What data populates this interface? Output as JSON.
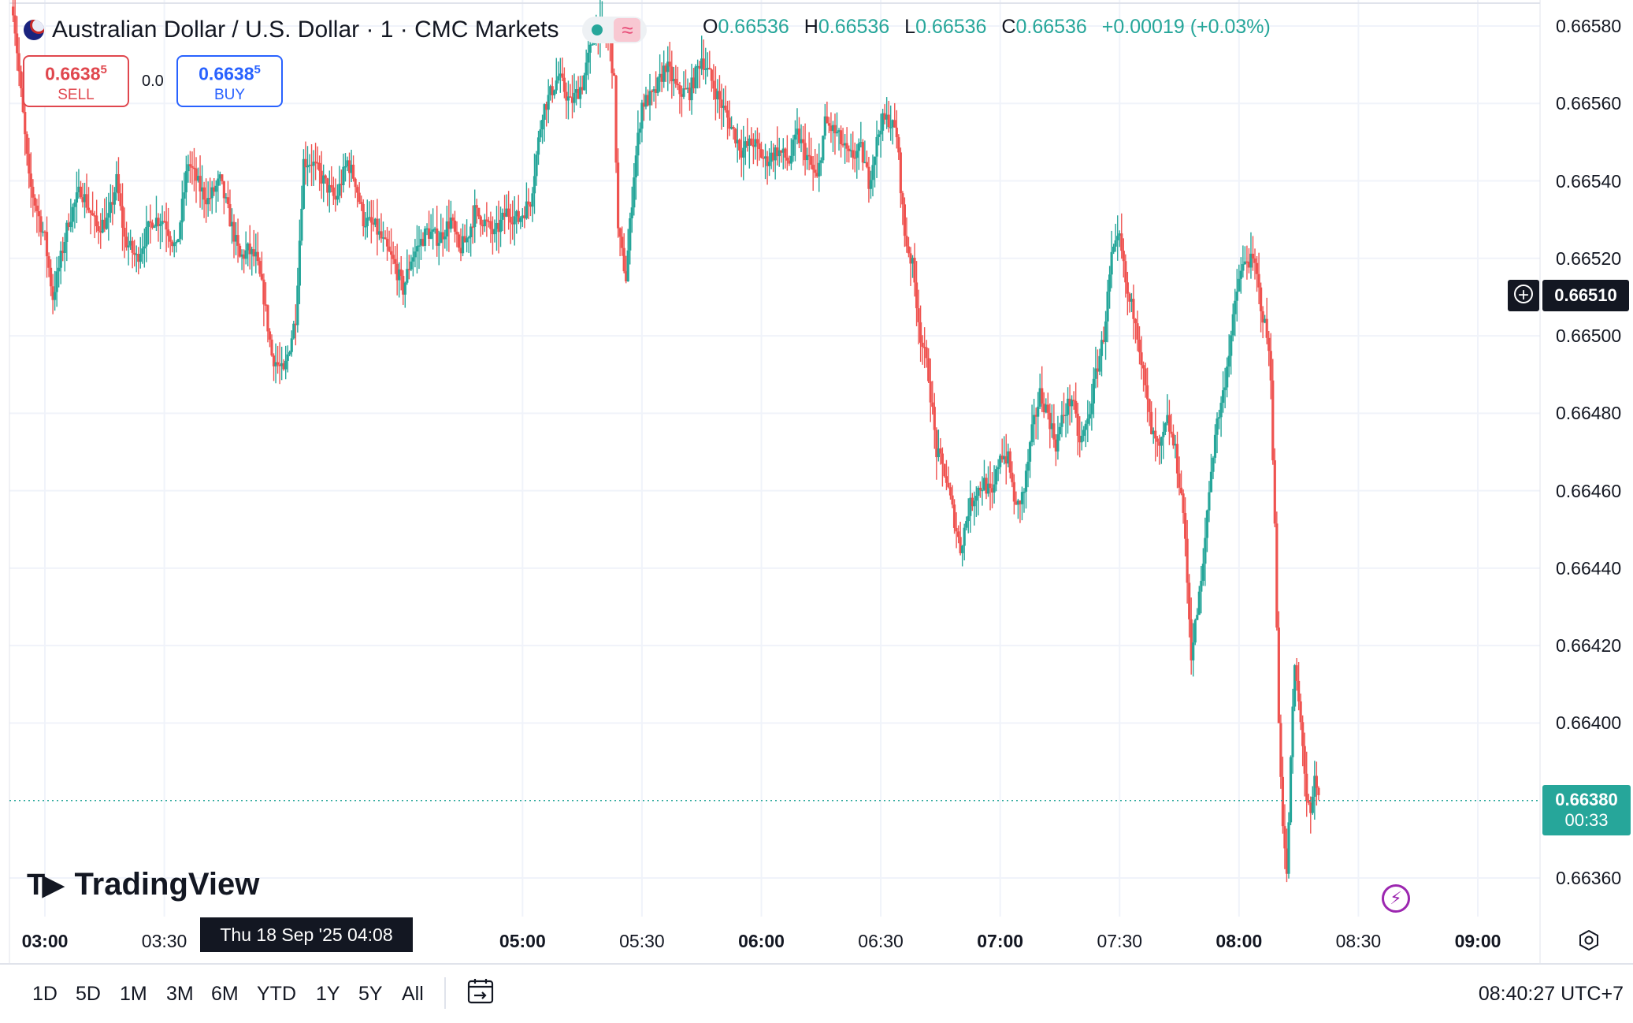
{
  "header": {
    "title": "Australian Dollar / U.S. Dollar · 1 · CMC Markets",
    "open_label": "O",
    "open": "0.66536",
    "high_label": "H",
    "high": "0.66536",
    "low_label": "L",
    "low": "0.66536",
    "close_label": "C",
    "close": "0.66536",
    "change": "+0.00019 (+0.03%)"
  },
  "trade": {
    "sell_price": "0.6638",
    "sell_sup": "5",
    "sell_label": "SELL",
    "spread": "0.0",
    "buy_price": "0.6638",
    "buy_sup": "5",
    "buy_label": "BUY"
  },
  "price_scale": {
    "crosshair_price": "0.66510",
    "last_price": "0.66380",
    "countdown": "00:33"
  },
  "crosshair_date": "Thu 18 Sep '25   04:08",
  "logo_text": "TradingView",
  "range_buttons": [
    "1D",
    "5D",
    "1M",
    "3M",
    "6M",
    "YTD",
    "1Y",
    "5Y",
    "All"
  ],
  "clock": "08:40:27 UTC+7",
  "colors": {
    "up": "#26a69a",
    "down": "#ef5350",
    "grid": "#f0f3fa"
  },
  "chart_data": {
    "type": "candlestick",
    "title": "Australian Dollar / U.S. Dollar · 1 · CMC Markets",
    "y_ticks": [
      "0.66580",
      "0.66560",
      "0.66540",
      "0.66520",
      "0.66500",
      "0.66480",
      "0.66460",
      "0.66440",
      "0.66420",
      "0.66400",
      "0.66360"
    ],
    "ylim": [
      0.6635,
      0.66585
    ],
    "x_ticks": [
      {
        "label": "03:00",
        "bold": true,
        "t": 180
      },
      {
        "label": "03:30",
        "bold": false,
        "t": 210
      },
      {
        "label": "05:00",
        "bold": true,
        "t": 300
      },
      {
        "label": "05:30",
        "bold": false,
        "t": 330
      },
      {
        "label": "06:00",
        "bold": true,
        "t": 360
      },
      {
        "label": "06:30",
        "bold": false,
        "t": 390
      },
      {
        "label": "07:00",
        "bold": true,
        "t": 420
      },
      {
        "label": "07:30",
        "bold": false,
        "t": 450
      },
      {
        "label": "08:00",
        "bold": true,
        "t": 480
      },
      {
        "label": "08:30",
        "bold": false,
        "t": 510
      },
      {
        "label": "09:00",
        "bold": true,
        "t": 540
      }
    ],
    "path": [
      [
        172,
        0.66585
      ],
      [
        176,
        0.6654
      ],
      [
        180,
        0.66525
      ],
      [
        182,
        0.6651
      ],
      [
        186,
        0.6653
      ],
      [
        189,
        0.66538
      ],
      [
        193,
        0.66528
      ],
      [
        196,
        0.6653
      ],
      [
        198,
        0.6654
      ],
      [
        200,
        0.66525
      ],
      [
        203,
        0.6652
      ],
      [
        207,
        0.6653
      ],
      [
        210,
        0.6653
      ],
      [
        213,
        0.66522
      ],
      [
        216,
        0.66545
      ],
      [
        219,
        0.66538
      ],
      [
        221,
        0.66535
      ],
      [
        224,
        0.6654
      ],
      [
        227,
        0.66528
      ],
      [
        229,
        0.6652
      ],
      [
        231,
        0.66522
      ],
      [
        233,
        0.6652
      ],
      [
        235,
        0.6651
      ],
      [
        237,
        0.66495
      ],
      [
        240,
        0.6649
      ],
      [
        243,
        0.66505
      ],
      [
        245,
        0.66545
      ],
      [
        247,
        0.66545
      ],
      [
        250,
        0.6654
      ],
      [
        253,
        0.66535
      ],
      [
        256,
        0.66545
      ],
      [
        258,
        0.6654
      ],
      [
        260,
        0.6653
      ],
      [
        263,
        0.66528
      ],
      [
        266,
        0.66522
      ],
      [
        268,
        0.66518
      ],
      [
        270,
        0.66512
      ],
      [
        272,
        0.6652
      ],
      [
        276,
        0.66527
      ],
      [
        279,
        0.66525
      ],
      [
        282,
        0.6653
      ],
      [
        284,
        0.66522
      ],
      [
        286,
        0.66525
      ],
      [
        288,
        0.66532
      ],
      [
        290,
        0.6653
      ],
      [
        293,
        0.66526
      ],
      [
        296,
        0.66532
      ],
      [
        299,
        0.6653
      ],
      [
        302,
        0.66535
      ],
      [
        305,
        0.66558
      ],
      [
        309,
        0.66567
      ],
      [
        312,
        0.6656
      ],
      [
        315,
        0.66565
      ],
      [
        318,
        0.66578
      ],
      [
        320,
        0.6658
      ],
      [
        322,
        0.66575
      ],
      [
        323,
        0.66565
      ],
      [
        324,
        0.66527
      ],
      [
        326,
        0.66515
      ],
      [
        328,
        0.66542
      ],
      [
        330,
        0.6656
      ],
      [
        333,
        0.66562
      ],
      [
        336,
        0.6657
      ],
      [
        339,
        0.66563
      ],
      [
        342,
        0.66563
      ],
      [
        345,
        0.66572
      ],
      [
        349,
        0.66562
      ],
      [
        352,
        0.66555
      ],
      [
        355,
        0.66548
      ],
      [
        358,
        0.6655
      ],
      [
        361,
        0.66545
      ],
      [
        364,
        0.66548
      ],
      [
        367,
        0.66545
      ],
      [
        369,
        0.66552
      ],
      [
        372,
        0.66545
      ],
      [
        374,
        0.6654
      ],
      [
        376,
        0.66555
      ],
      [
        379,
        0.66552
      ],
      [
        382,
        0.66546
      ],
      [
        385,
        0.66548
      ],
      [
        387,
        0.6654
      ],
      [
        390,
        0.66555
      ],
      [
        392,
        0.66556
      ],
      [
        394,
        0.66552
      ],
      [
        396,
        0.66526
      ],
      [
        398,
        0.66518
      ],
      [
        400,
        0.665
      ],
      [
        402,
        0.6649
      ],
      [
        404,
        0.6647
      ],
      [
        406,
        0.66465
      ],
      [
        408,
        0.66455
      ],
      [
        410,
        0.66445
      ],
      [
        412,
        0.66455
      ],
      [
        414,
        0.6646
      ],
      [
        416,
        0.66462
      ],
      [
        418,
        0.66458
      ],
      [
        420,
        0.6647
      ],
      [
        422,
        0.66468
      ],
      [
        424,
        0.66455
      ],
      [
        426,
        0.6646
      ],
      [
        428,
        0.66475
      ],
      [
        430,
        0.66485
      ],
      [
        432,
        0.6648
      ],
      [
        434,
        0.66472
      ],
      [
        436,
        0.6648
      ],
      [
        438,
        0.66484
      ],
      [
        440,
        0.66472
      ],
      [
        442,
        0.66478
      ],
      [
        444,
        0.6649
      ],
      [
        446,
        0.665
      ],
      [
        448,
        0.6652
      ],
      [
        450,
        0.66525
      ],
      [
        452,
        0.6651
      ],
      [
        454,
        0.66505
      ],
      [
        456,
        0.6649
      ],
      [
        458,
        0.66475
      ],
      [
        460,
        0.6647
      ],
      [
        462,
        0.66478
      ],
      [
        464,
        0.6647
      ],
      [
        466,
        0.66455
      ],
      [
        468,
        0.66418
      ],
      [
        469,
        0.66425
      ],
      [
        471,
        0.6644
      ],
      [
        472,
        0.66455
      ],
      [
        474,
        0.66475
      ],
      [
        476,
        0.66485
      ],
      [
        478,
        0.665
      ],
      [
        480,
        0.66515
      ],
      [
        482,
        0.6652
      ],
      [
        484,
        0.66518
      ],
      [
        486,
        0.66505
      ],
      [
        487,
        0.665
      ],
      [
        488,
        0.6649
      ],
      [
        489,
        0.6645
      ],
      [
        490,
        0.664
      ],
      [
        491,
        0.66375
      ],
      [
        492,
        0.6636
      ],
      [
        493,
        0.6639
      ],
      [
        494,
        0.66415
      ],
      [
        495,
        0.66405
      ],
      [
        496,
        0.66395
      ],
      [
        497,
        0.6638
      ],
      [
        498,
        0.66375
      ],
      [
        499,
        0.66385
      ],
      [
        500,
        0.6638
      ]
    ]
  }
}
